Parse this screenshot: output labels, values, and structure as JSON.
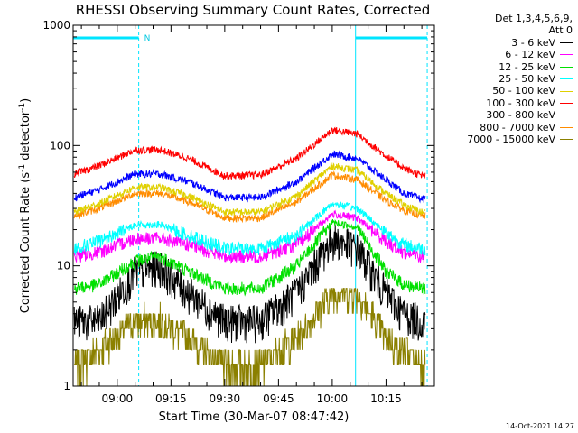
{
  "chart_data": {
    "type": "line",
    "title": "RHESSI Observing Summary Count Rates, Corrected",
    "xlabel": "Start Time (30-Mar-07 08:47:42)",
    "ylabel": "Corrected Count Rate (s",
    "ylabel_sup": "-1",
    "ylabel_mid": " detector",
    "ylabel_sup2": "-1",
    "ylabel_end": ")",
    "yscale": "log",
    "ylim": [
      1,
      1000
    ],
    "xlim": [
      "08:47:42",
      "10:28:30"
    ],
    "x_ticks": [
      "09:00",
      "09:15",
      "09:30",
      "09:45",
      "10:00",
      "10:15"
    ],
    "y_ticks": [
      "1",
      "10",
      "100",
      "1000"
    ],
    "grid": false,
    "legend_position": "top-right",
    "legend_header": [
      "Det 1,3,4,5,6,9,",
      "Att 0"
    ],
    "annotation_N": "N",
    "night_intervals": [
      [
        "08:47:42",
        "09:06:00"
      ],
      [
        "10:06:30",
        "10:26:30"
      ]
    ],
    "series": [
      {
        "name": "3 - 6 keV",
        "color": "#000000",
        "x": [
          "08:48",
          "08:55",
          "09:05",
          "09:12",
          "09:20",
          "09:30",
          "09:40",
          "09:50",
          "10:00",
          "10:07",
          "10:15",
          "10:20",
          "10:25"
        ],
        "values": [
          3.5,
          3.5,
          9,
          10,
          6,
          3.5,
          3.5,
          6,
          17,
          14,
          6,
          4,
          3.5
        ]
      },
      {
        "name": "6 - 12 keV",
        "color": "#ff00ff",
        "x": [
          "08:48",
          "08:55",
          "09:05",
          "09:12",
          "09:20",
          "09:30",
          "09:40",
          "09:50",
          "10:00",
          "10:07",
          "10:15",
          "10:20",
          "10:25"
        ],
        "values": [
          12,
          13,
          17,
          17,
          15,
          12,
          12,
          15,
          27,
          25,
          16,
          13,
          12
        ]
      },
      {
        "name": "12 - 25 keV",
        "color": "#00e000",
        "x": [
          "08:48",
          "08:55",
          "09:05",
          "09:12",
          "09:20",
          "09:30",
          "09:40",
          "09:50",
          "10:00",
          "10:07",
          "10:15",
          "10:20",
          "10:25"
        ],
        "values": [
          6.5,
          7,
          11,
          12,
          9,
          6.5,
          6.5,
          10,
          23,
          21,
          9,
          7,
          6.5
        ]
      },
      {
        "name": "25 - 50 keV",
        "color": "#00ffff",
        "x": [
          "08:48",
          "08:55",
          "09:05",
          "09:12",
          "09:20",
          "09:30",
          "09:40",
          "09:50",
          "10:00",
          "10:07",
          "10:15",
          "10:20",
          "10:25"
        ],
        "values": [
          14,
          16,
          22,
          22,
          18,
          14,
          14,
          18,
          33,
          30,
          19,
          15,
          14
        ]
      },
      {
        "name": "50 - 100 keV",
        "color": "#e0d000",
        "x": [
          "08:48",
          "08:55",
          "09:05",
          "09:12",
          "09:20",
          "09:30",
          "09:40",
          "09:50",
          "10:00",
          "10:07",
          "10:15",
          "10:20",
          "10:25"
        ],
        "values": [
          28,
          33,
          45,
          45,
          38,
          28,
          28,
          38,
          68,
          62,
          40,
          32,
          28
        ]
      },
      {
        "name": "100 - 300 keV",
        "color": "#ff0000",
        "x": [
          "08:48",
          "08:55",
          "09:05",
          "09:12",
          "09:20",
          "09:30",
          "09:40",
          "09:50",
          "10:00",
          "10:07",
          "10:15",
          "10:20",
          "10:25"
        ],
        "values": [
          58,
          68,
          92,
          92,
          78,
          56,
          57,
          78,
          135,
          125,
          82,
          65,
          56
        ]
      },
      {
        "name": "300 - 800 keV",
        "color": "#0000ff",
        "x": [
          "08:48",
          "08:55",
          "09:05",
          "09:12",
          "09:20",
          "09:30",
          "09:40",
          "09:50",
          "10:00",
          "10:07",
          "10:15",
          "10:20",
          "10:25"
        ],
        "values": [
          37,
          43,
          58,
          58,
          50,
          37,
          37,
          50,
          85,
          78,
          52,
          40,
          36
        ]
      },
      {
        "name": "800 - 7000 keV",
        "color": "#ff8c00",
        "x": [
          "08:48",
          "08:55",
          "09:05",
          "09:12",
          "09:20",
          "09:30",
          "09:40",
          "09:50",
          "10:00",
          "10:07",
          "10:15",
          "10:20",
          "10:25"
        ],
        "values": [
          26,
          30,
          40,
          40,
          34,
          25,
          25,
          34,
          57,
          52,
          35,
          29,
          26
        ]
      },
      {
        "name": "7000 - 15000 keV",
        "color": "#8b8000",
        "x": [
          "08:48",
          "08:55",
          "09:05",
          "09:12",
          "09:20",
          "09:30",
          "09:40",
          "09:50",
          "10:00",
          "10:07",
          "10:15",
          "10:20",
          "10:25"
        ],
        "values": [
          1.5,
          2,
          3.5,
          3.5,
          2.5,
          1.5,
          1.5,
          2.5,
          6,
          6,
          2.5,
          2,
          1.5
        ]
      }
    ]
  },
  "timestamp": "14-Oct-2021 14:27"
}
